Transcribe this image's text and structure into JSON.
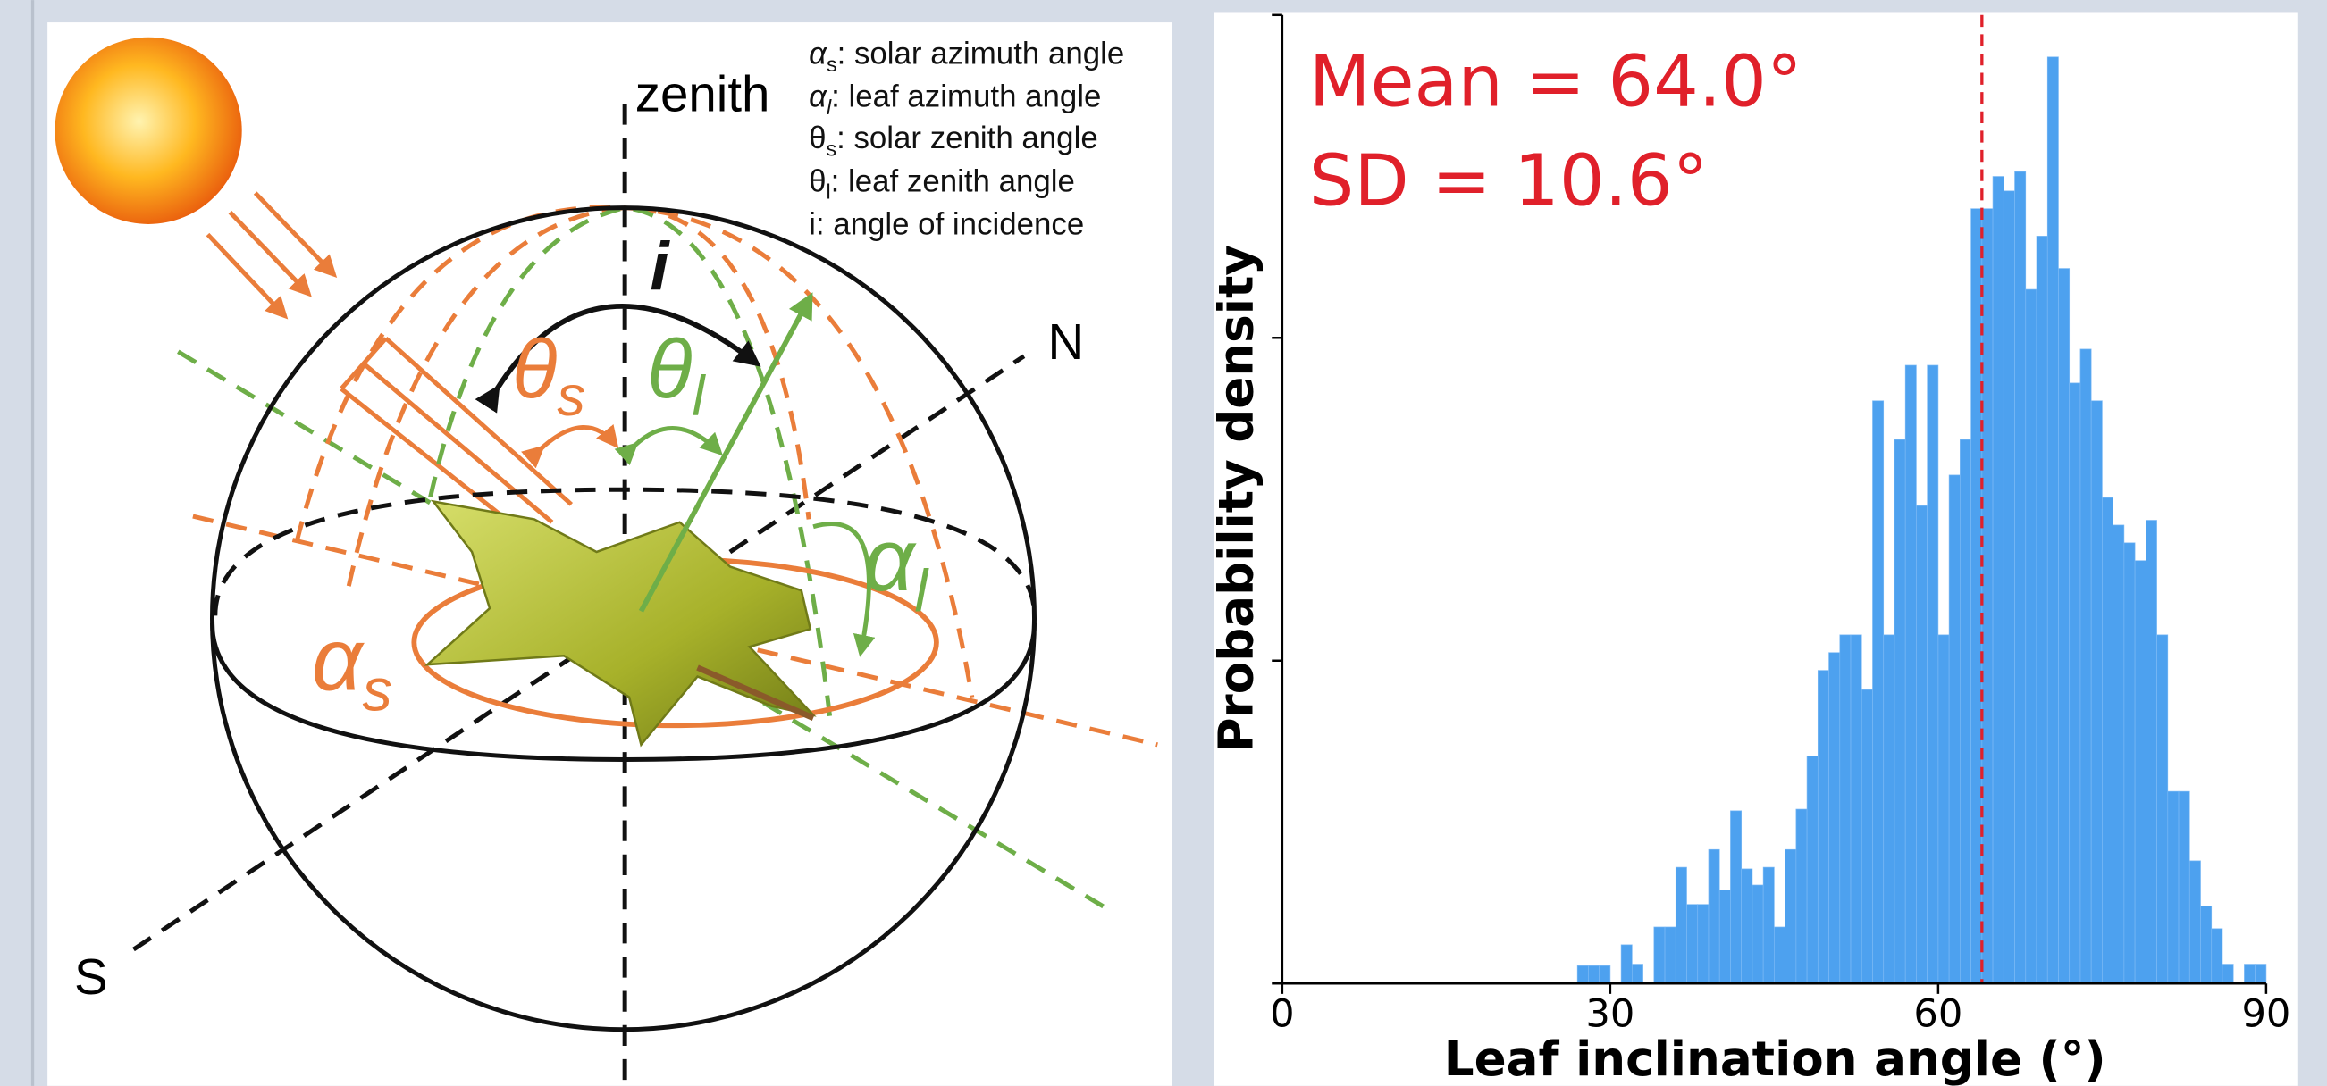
{
  "diagram": {
    "zenith": "zenith",
    "north": "N",
    "south": "S",
    "legend": [
      {
        "symbol": "α",
        "sub": "s",
        "text": ": solar azimuth angle"
      },
      {
        "symbol": "α",
        "sub": "l",
        "text": ": leaf azimuth angle"
      },
      {
        "symbol": "θ",
        "sub": "s",
        "text": ": solar zenith angle"
      },
      {
        "symbol": "θ",
        "sub": "l",
        "text": ": leaf zenith angle"
      },
      {
        "symbol": "i",
        "text": ": angle of incidence"
      }
    ],
    "angles": [
      {
        "symbol": "θ",
        "sub": "s"
      },
      {
        "symbol": "θ",
        "sub": "l"
      },
      {
        "symbol": "α",
        "sub": "s"
      },
      {
        "symbol": "α",
        "sub": "l"
      },
      {
        "symbol": "i"
      }
    ]
  },
  "chart_data": {
    "type": "histogram",
    "xlabel": "Leaf inclination angle (°)",
    "ylabel": "Probability density",
    "annotations": [
      "Mean = 64.0°",
      "SD = 10.6°"
    ],
    "mean": 64.0,
    "mean_color": "#e0202a",
    "color": "#4da1ef",
    "bins": [
      27,
      28,
      29,
      30,
      31,
      32,
      33,
      34,
      35,
      36,
      37,
      38,
      39,
      40,
      41,
      42,
      43,
      44,
      45,
      46,
      47,
      48,
      49,
      50,
      51,
      52,
      53,
      54,
      55,
      56,
      57,
      58,
      59,
      60,
      61,
      62,
      63,
      64,
      65,
      66,
      67,
      68,
      69,
      70,
      71,
      72,
      73,
      74,
      75,
      76,
      77,
      78,
      79,
      80,
      81,
      82,
      83,
      84,
      85,
      86,
      87,
      88,
      89,
      90
    ],
    "values": [
      0.0011,
      0.0011,
      0.0011,
      0,
      0.0024,
      0.0012,
      0,
      0.0035,
      0.0035,
      0.0072,
      0.0049,
      0.0049,
      0.0083,
      0.0058,
      0.0107,
      0.0071,
      0.0061,
      0.0072,
      0.0035,
      0.0083,
      0.0108,
      0.0141,
      0.0194,
      0.0205,
      0.0216,
      0.0216,
      0.0182,
      0.0361,
      0.0216,
      0.0337,
      0.0383,
      0.0296,
      0.0383,
      0.0216,
      0.0315,
      0.0337,
      0.048,
      0.048,
      0.05,
      0.0491,
      0.0503,
      0.043,
      0.0463,
      0.0574,
      0.0443,
      0.0372,
      0.0393,
      0.0361,
      0.0301,
      0.0284,
      0.0273,
      0.0262,
      0.0287,
      0.0216,
      0.0119,
      0.0119,
      0.0076,
      0.0048,
      0.0034,
      0.0012,
      0,
      0.0012,
      0.0012
    ],
    "xlim": [
      0,
      90
    ],
    "xticks": [
      0,
      30,
      60,
      90
    ],
    "ylim": [
      0,
      0.06
    ],
    "yticks": [
      0,
      0.02,
      0.04,
      0.06
    ]
  }
}
